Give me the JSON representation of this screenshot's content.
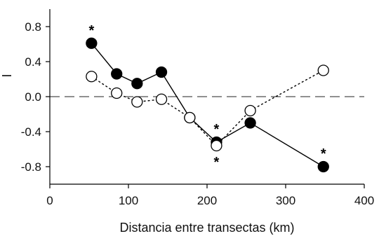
{
  "chart_data": {
    "type": "line",
    "title": "",
    "xlabel": "Distancia entre transectas (km)",
    "ylabel": "I",
    "xlim": [
      0,
      400
    ],
    "ylim": [
      -1.0,
      1.0
    ],
    "xticks": [
      0,
      100,
      200,
      300,
      400
    ],
    "yticks": [
      -0.8,
      -0.4,
      0.0,
      0.4,
      0.8
    ],
    "ytick_labels": [
      "-0.8",
      "-0.4",
      "0.0",
      "0.4",
      "0.8"
    ],
    "grid": false,
    "legend": "none",
    "reference_line": {
      "y": 0.0,
      "style": "dashed"
    },
    "series": [
      {
        "marker": "filled-circle",
        "line_style": "solid",
        "color": "#000000",
        "points": [
          {
            "x": 53,
            "y": 0.61
          },
          {
            "x": 85,
            "y": 0.26
          },
          {
            "x": 111,
            "y": 0.15
          },
          {
            "x": 142,
            "y": 0.28
          },
          {
            "x": 178,
            "y": -0.24
          },
          {
            "x": 212,
            "y": -0.52
          },
          {
            "x": 255,
            "y": -0.3
          },
          {
            "x": 348,
            "y": -0.8
          }
        ]
      },
      {
        "marker": "open-circle",
        "line_style": "dotted",
        "color": "#000000",
        "points": [
          {
            "x": 53,
            "y": 0.23
          },
          {
            "x": 85,
            "y": 0.04
          },
          {
            "x": 111,
            "y": -0.06
          },
          {
            "x": 142,
            "y": -0.03
          },
          {
            "x": 178,
            "y": -0.24
          },
          {
            "x": 212,
            "y": -0.56
          },
          {
            "x": 255,
            "y": -0.16
          },
          {
            "x": 348,
            "y": 0.3
          }
        ]
      }
    ],
    "annotations": [
      {
        "text": "*",
        "x": 53,
        "y": 0.61,
        "position": "above"
      },
      {
        "text": "*",
        "x": 212,
        "y": -0.52,
        "position": "above"
      },
      {
        "text": "*",
        "x": 212,
        "y": -0.56,
        "position": "below"
      },
      {
        "text": "*",
        "x": 348,
        "y": -0.8,
        "position": "above"
      }
    ]
  }
}
